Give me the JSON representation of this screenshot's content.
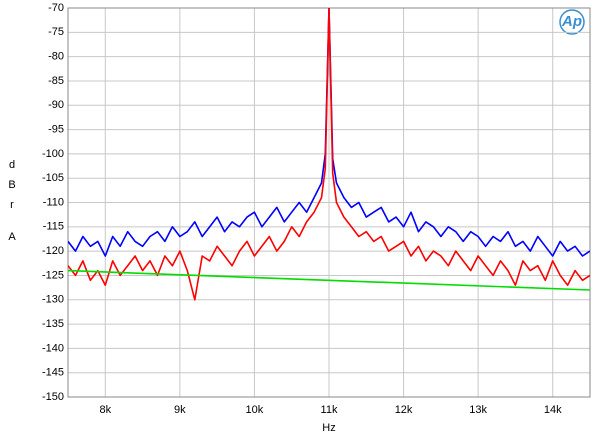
{
  "chart_data": {
    "type": "line",
    "xlabel": "Hz",
    "ylabel_lines": [
      "d",
      "B",
      "r",
      "A"
    ],
    "logo": "Ap",
    "xlim": [
      7500,
      14500
    ],
    "ylim": [
      -150,
      -70
    ],
    "xticks": [
      {
        "value": 8000,
        "label": "8k"
      },
      {
        "value": 9000,
        "label": "9k"
      },
      {
        "value": 10000,
        "label": "10k"
      },
      {
        "value": 11000,
        "label": "11k"
      },
      {
        "value": 12000,
        "label": "12k"
      },
      {
        "value": 13000,
        "label": "13k"
      },
      {
        "value": 14000,
        "label": "14k"
      }
    ],
    "yticks": [
      -150,
      -145,
      -140,
      -135,
      -130,
      -125,
      -120,
      -115,
      -110,
      -105,
      -100,
      -95,
      -90,
      -85,
      -80,
      -75,
      -70
    ],
    "grid": true,
    "x": [
      7500,
      7600,
      7700,
      7800,
      7900,
      8000,
      8100,
      8200,
      8300,
      8400,
      8500,
      8600,
      8700,
      8800,
      8900,
      9000,
      9100,
      9200,
      9300,
      9400,
      9500,
      9600,
      9700,
      9800,
      9900,
      10000,
      10100,
      10200,
      10300,
      10400,
      10500,
      10600,
      10700,
      10800,
      10900,
      10950,
      11000,
      11050,
      11100,
      11200,
      11300,
      11400,
      11500,
      11600,
      11700,
      11800,
      11900,
      12000,
      12100,
      12200,
      12300,
      12400,
      12500,
      12600,
      12700,
      12800,
      12900,
      13000,
      13100,
      13200,
      13300,
      13400,
      13500,
      13600,
      13700,
      13800,
      13900,
      14000,
      14100,
      14200,
      14300,
      14400,
      14500
    ],
    "series": [
      {
        "color": "#0000ff",
        "values": [
          -118,
          -120,
          -117,
          -119,
          -118,
          -121,
          -117,
          -119,
          -116,
          -118,
          -119,
          -117,
          -116,
          -118,
          -115,
          -117,
          -116,
          -114,
          -117,
          -115,
          -113,
          -116,
          -114,
          -115,
          -113,
          -112,
          -115,
          -113,
          -111,
          -114,
          -112,
          -110,
          -112,
          -109,
          -106,
          -100,
          -70,
          -101,
          -106,
          -109,
          -111,
          -110,
          -113,
          -112,
          -111,
          -114,
          -113,
          -115,
          -112,
          -116,
          -114,
          -115,
          -117,
          -115,
          -116,
          -118,
          -116,
          -117,
          -119,
          -117,
          -118,
          -116,
          -119,
          -118,
          -120,
          -117,
          -119,
          -121,
          -118,
          -120,
          -119,
          -121,
          -120
        ]
      },
      {
        "color": "#ff0000",
        "values": [
          -123,
          -125,
          -122,
          -126,
          -124,
          -127,
          -122,
          -125,
          -123,
          -121,
          -124,
          -122,
          -125,
          -121,
          -123,
          -120,
          -124,
          -130,
          -121,
          -122,
          -119,
          -121,
          -123,
          -120,
          -118,
          -121,
          -119,
          -117,
          -120,
          -118,
          -115,
          -117,
          -114,
          -112,
          -109,
          -103,
          -70,
          -104,
          -110,
          -113,
          -115,
          -117,
          -116,
          -118,
          -117,
          -120,
          -119,
          -118,
          -121,
          -119,
          -122,
          -120,
          -121,
          -123,
          -120,
          -122,
          -124,
          -121,
          -123,
          -125,
          -122,
          -124,
          -127,
          -122,
          -124,
          -123,
          -126,
          -122,
          -125,
          -127,
          -124,
          -126,
          -125
        ]
      },
      {
        "color": "#00dd00",
        "x": [
          7500,
          14500
        ],
        "values": [
          -124,
          -128
        ]
      }
    ]
  }
}
